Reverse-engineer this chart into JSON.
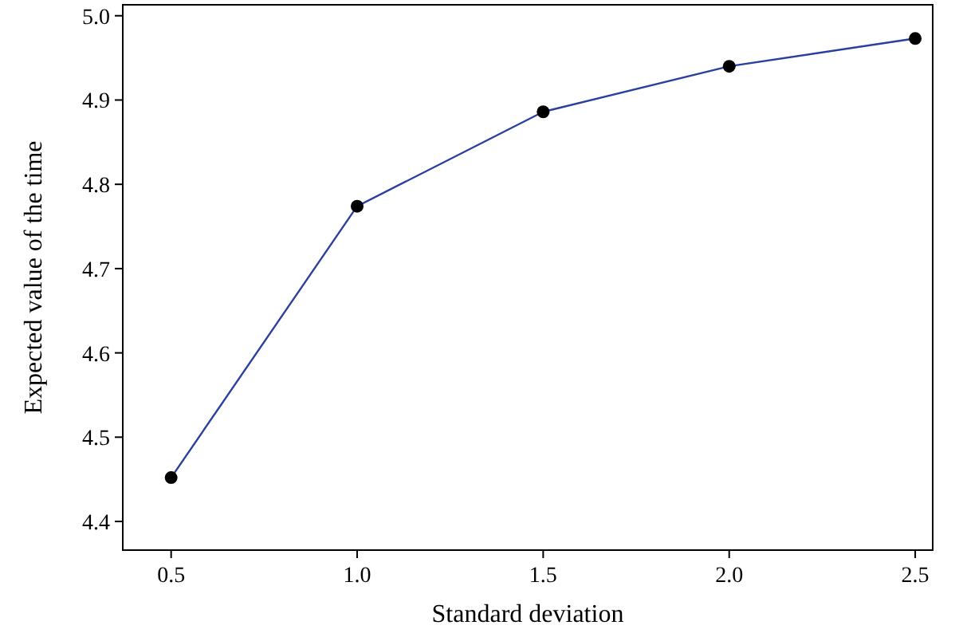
{
  "chart_data": {
    "type": "line",
    "xlabel": "Standard deviation",
    "ylabel": "Expected value of the time",
    "x": [
      0.5,
      1.0,
      1.5,
      2.0,
      2.5
    ],
    "series": [
      {
        "color": "#2b3f9e",
        "values": [
          4.452,
          4.774,
          4.886,
          4.94,
          4.973
        ]
      }
    ],
    "xlim": [
      0.37,
      2.547
    ],
    "xticks": [
      {
        "value": 0.5,
        "label": "0.5"
      },
      {
        "value": 1,
        "label": "1.0"
      },
      {
        "value": 1.5,
        "label": "1.5"
      },
      {
        "value": 2,
        "label": "2.0"
      },
      {
        "value": 2.5,
        "label": "2.5"
      }
    ],
    "ylim": [
      4.366,
      5.013
    ],
    "yticks": [
      {
        "value": 4.4,
        "label": "4.4"
      },
      {
        "value": 4.5,
        "label": "4.5"
      },
      {
        "value": 4.6,
        "label": "4.6"
      },
      {
        "value": 4.7,
        "label": "4.7"
      },
      {
        "value": 4.8,
        "label": "4.8"
      },
      {
        "value": 4.9,
        "label": "4.9"
      },
      {
        "value": 5,
        "label": "5.0"
      }
    ],
    "marker": "circle",
    "line_style": "solid",
    "grid": false
  }
}
